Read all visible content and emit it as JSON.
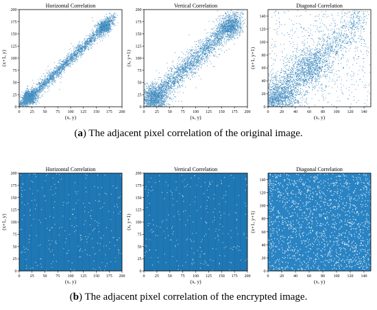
{
  "figure": {
    "caption_a": {
      "letter": "a",
      "text": " The adjacent pixel correlation of the original image."
    },
    "caption_b": {
      "letter": "b",
      "text": " The adjacent pixel correlation of the encrypted image."
    }
  },
  "chart_data": [
    {
      "type": "scatter",
      "panel": "a-horizontal",
      "title": "Horizontal Correlation",
      "xlabel": "(x, y)",
      "ylabel": "(x+1, y)",
      "xlim": [
        0,
        200
      ],
      "ylim": [
        0,
        200
      ],
      "xticks": [
        0,
        25,
        50,
        75,
        100,
        125,
        150,
        175,
        200
      ],
      "yticks": [
        0,
        25,
        50,
        75,
        100,
        125,
        150,
        175,
        200
      ],
      "color": "#1f77b4",
      "distribution": "diagonal-tight",
      "clusters": [
        [
          20,
          20
        ],
        [
          165,
          165
        ]
      ],
      "spread": 7,
      "points": [
        [
          20,
          22
        ],
        [
          25,
          24
        ],
        [
          32,
          30
        ],
        [
          40,
          42
        ],
        [
          48,
          46
        ],
        [
          55,
          57
        ],
        [
          62,
          60
        ],
        [
          70,
          72
        ],
        [
          78,
          76
        ],
        [
          85,
          87
        ],
        [
          92,
          90
        ],
        [
          100,
          102
        ],
        [
          108,
          106
        ],
        [
          115,
          117
        ],
        [
          122,
          120
        ],
        [
          130,
          132
        ],
        [
          138,
          136
        ],
        [
          145,
          147
        ],
        [
          152,
          150
        ],
        [
          160,
          163
        ],
        [
          165,
          166
        ],
        [
          170,
          168
        ],
        [
          175,
          176
        ],
        [
          160,
          158
        ]
      ]
    },
    {
      "type": "scatter",
      "panel": "a-vertical",
      "title": "Vertical Correlation",
      "xlabel": "(x, y)",
      "ylabel": "(x, y+1)",
      "xlim": [
        0,
        200
      ],
      "ylim": [
        0,
        200
      ],
      "xticks": [
        0,
        25,
        50,
        75,
        100,
        125,
        150,
        175,
        200
      ],
      "yticks": [
        0,
        25,
        50,
        75,
        100,
        125,
        150,
        175,
        200
      ],
      "color": "#1f77b4",
      "distribution": "diagonal-wide",
      "clusters": [
        [
          22,
          20
        ],
        [
          165,
          165
        ]
      ],
      "spread": 14,
      "points": [
        [
          20,
          25
        ],
        [
          28,
          20
        ],
        [
          35,
          40
        ],
        [
          42,
          35
        ],
        [
          50,
          58
        ],
        [
          58,
          48
        ],
        [
          65,
          72
        ],
        [
          72,
          62
        ],
        [
          80,
          88
        ],
        [
          88,
          78
        ],
        [
          95,
          105
        ],
        [
          102,
          92
        ],
        [
          110,
          120
        ],
        [
          118,
          108
        ],
        [
          125,
          135
        ],
        [
          132,
          122
        ],
        [
          140,
          150
        ],
        [
          148,
          140
        ],
        [
          155,
          165
        ],
        [
          162,
          155
        ],
        [
          168,
          175
        ],
        [
          172,
          165
        ],
        [
          178,
          180
        ],
        [
          160,
          170
        ]
      ]
    },
    {
      "type": "scatter",
      "panel": "a-diagonal",
      "title": "Diagonal Correlation",
      "xlabel": "(x, y)",
      "ylabel": "(x+1, y+1)",
      "xlim": [
        0,
        150
      ],
      "ylim": [
        0,
        150
      ],
      "xticks": [
        0,
        20,
        40,
        60,
        80,
        100,
        120,
        140
      ],
      "yticks": [
        0,
        20,
        40,
        60,
        80,
        100,
        120,
        140
      ],
      "color": "#1f77b4",
      "distribution": "diagonal-diffuse",
      "clusters": [
        [
          15,
          15
        ],
        [
          60,
          60
        ]
      ],
      "spread": 18,
      "points": [
        [
          10,
          12
        ],
        [
          15,
          8
        ],
        [
          20,
          28
        ],
        [
          25,
          15
        ],
        [
          30,
          40
        ],
        [
          35,
          25
        ],
        [
          40,
          52
        ],
        [
          45,
          35
        ],
        [
          50,
          60
        ],
        [
          55,
          42
        ],
        [
          60,
          72
        ],
        [
          65,
          50
        ],
        [
          70,
          80
        ],
        [
          75,
          60
        ],
        [
          80,
          95
        ],
        [
          85,
          70
        ],
        [
          90,
          105
        ],
        [
          100,
          85
        ],
        [
          110,
          125
        ],
        [
          120,
          100
        ],
        [
          130,
          140
        ],
        [
          140,
          120
        ],
        [
          60,
          110
        ],
        [
          110,
          60
        ]
      ]
    },
    {
      "type": "scatter",
      "panel": "b-horizontal",
      "title": "Horizontal Correlation",
      "xlabel": "(x, y)",
      "ylabel": "(x+1, y)",
      "xlim": [
        0,
        200
      ],
      "ylim": [
        0,
        200
      ],
      "xticks": [
        0,
        25,
        50,
        75,
        100,
        125,
        150,
        175,
        200
      ],
      "yticks": [
        0,
        25,
        50,
        75,
        100,
        125,
        150,
        175,
        200
      ],
      "color": "#1f77b4",
      "distribution": "uniform-dense",
      "points": [
        [
          10,
          180
        ],
        [
          40,
          30
        ],
        [
          70,
          120
        ],
        [
          100,
          60
        ],
        [
          130,
          150
        ],
        [
          160,
          20
        ],
        [
          190,
          90
        ],
        [
          25,
          100
        ],
        [
          55,
          170
        ],
        [
          85,
          45
        ],
        [
          115,
          140
        ],
        [
          145,
          75
        ],
        [
          175,
          160
        ],
        [
          5,
          50
        ],
        [
          195,
          195
        ]
      ]
    },
    {
      "type": "scatter",
      "panel": "b-vertical",
      "title": "Vertical Correlation",
      "xlabel": "(x, y)",
      "ylabel": "(x, y+1)",
      "xlim": [
        0,
        200
      ],
      "ylim": [
        0,
        200
      ],
      "xticks": [
        0,
        25,
        50,
        75,
        100,
        125,
        150,
        175,
        200
      ],
      "yticks": [
        0,
        25,
        50,
        75,
        100,
        125,
        150,
        175,
        200
      ],
      "color": "#1f77b4",
      "distribution": "uniform-dense",
      "points": [
        [
          20,
          160
        ],
        [
          50,
          40
        ],
        [
          80,
          110
        ],
        [
          110,
          70
        ],
        [
          140,
          190
        ],
        [
          170,
          30
        ],
        [
          195,
          120
        ],
        [
          35,
          80
        ],
        [
          65,
          150
        ],
        [
          95,
          15
        ],
        [
          125,
          130
        ],
        [
          155,
          95
        ],
        [
          185,
          55
        ],
        [
          10,
          10
        ],
        [
          190,
          190
        ]
      ]
    },
    {
      "type": "scatter",
      "panel": "b-diagonal",
      "title": "Diagonal Correlation",
      "xlabel": "(x, y)",
      "ylabel": "(x+1, y+1)",
      "xlim": [
        0,
        150
      ],
      "ylim": [
        0,
        150
      ],
      "xticks": [
        0,
        20,
        40,
        60,
        80,
        100,
        120,
        140
      ],
      "yticks": [
        0,
        20,
        40,
        60,
        80,
        100,
        120,
        140
      ],
      "color": "#1f77b4",
      "distribution": "uniform-sparse",
      "points": [
        [
          10,
          130
        ],
        [
          30,
          20
        ],
        [
          50,
          90
        ],
        [
          70,
          50
        ],
        [
          90,
          140
        ],
        [
          110,
          15
        ],
        [
          130,
          80
        ],
        [
          20,
          60
        ],
        [
          45,
          115
        ],
        [
          65,
          10
        ],
        [
          85,
          100
        ],
        [
          105,
          40
        ],
        [
          125,
          125
        ],
        [
          140,
          65
        ],
        [
          5,
          5
        ]
      ]
    }
  ]
}
